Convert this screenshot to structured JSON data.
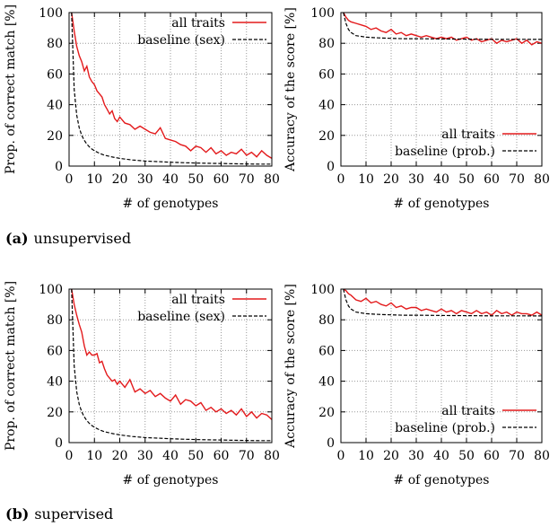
{
  "chart_data": [
    {
      "type": "line",
      "xlabel": "# of genotypes",
      "ylabel": "Prop. of correct match [%]",
      "xlim": [
        0,
        80
      ],
      "ylim": [
        0,
        100
      ],
      "xticks": [
        "0",
        "10",
        "20",
        "30",
        "40",
        "50",
        "60",
        "70",
        "80"
      ],
      "yticks": [
        "0",
        "20",
        "40",
        "60",
        "80",
        "100"
      ],
      "grid": true,
      "legend_position": "top-right",
      "series": [
        {
          "name": "all traits",
          "color": "#e31a1c",
          "style": "solid",
          "x": [
            1,
            2,
            3,
            4,
            5,
            6,
            7,
            8,
            9,
            10,
            11,
            12,
            13,
            14,
            15,
            16,
            17,
            18,
            19,
            20,
            22,
            24,
            26,
            28,
            30,
            32,
            34,
            36,
            38,
            40,
            42,
            44,
            46,
            48,
            50,
            52,
            54,
            56,
            58,
            60,
            62,
            64,
            66,
            68,
            70,
            72,
            74,
            76,
            78,
            80
          ],
          "y": [
            100,
            88,
            78,
            72,
            68,
            62,
            65,
            58,
            55,
            53,
            49,
            47,
            45,
            40,
            37,
            34,
            36,
            31,
            29,
            32,
            28,
            27,
            24,
            26,
            24,
            22,
            21,
            25,
            18,
            17,
            16,
            14,
            13,
            10,
            13,
            12,
            9,
            12,
            8,
            10,
            7,
            9,
            8,
            11,
            7,
            9,
            6,
            10,
            7,
            5
          ]
        },
        {
          "name": "baseline (sex)",
          "color": "#000000",
          "style": "dashed",
          "x": [
            1,
            2,
            3,
            4,
            5,
            6,
            7,
            8,
            9,
            10,
            12,
            14,
            16,
            18,
            20,
            25,
            30,
            35,
            40,
            45,
            50,
            55,
            60,
            65,
            70,
            75,
            80
          ],
          "y": [
            100,
            50,
            33.3,
            25,
            20,
            16.7,
            14.3,
            12.5,
            11.1,
            10,
            8.3,
            7.1,
            6.3,
            5.6,
            5,
            4,
            3.3,
            2.9,
            2.5,
            2.2,
            2,
            1.8,
            1.7,
            1.5,
            1.4,
            1.3,
            1.3
          ]
        }
      ]
    },
    {
      "type": "line",
      "xlabel": "# of genotypes",
      "ylabel": "Accuracy of the score [%]",
      "xlim": [
        0,
        80
      ],
      "ylim": [
        0,
        100
      ],
      "xticks": [
        "0",
        "10",
        "20",
        "30",
        "40",
        "50",
        "60",
        "70",
        "80"
      ],
      "yticks": [
        "0",
        "20",
        "40",
        "60",
        "80",
        "100"
      ],
      "grid": true,
      "legend_position": "bottom-right",
      "series": [
        {
          "name": "all traits",
          "color": "#e31a1c",
          "style": "solid",
          "x": [
            1,
            2,
            3,
            4,
            6,
            8,
            10,
            12,
            14,
            16,
            18,
            20,
            22,
            24,
            26,
            28,
            30,
            32,
            34,
            36,
            38,
            40,
            42,
            44,
            46,
            48,
            50,
            52,
            54,
            56,
            58,
            60,
            62,
            64,
            66,
            68,
            70,
            72,
            74,
            76,
            78,
            80
          ],
          "y": [
            100,
            97,
            95,
            94,
            93,
            92,
            91,
            89,
            90,
            88,
            87,
            89,
            86,
            87,
            85,
            86,
            85,
            84,
            85,
            84,
            83,
            84,
            83,
            84,
            82,
            83,
            84,
            82,
            83,
            81,
            82,
            83,
            80,
            82,
            81,
            82,
            83,
            80,
            82,
            79,
            81,
            80
          ]
        },
        {
          "name": "baseline (prob.)",
          "color": "#000000",
          "style": "dashed",
          "x": [
            1,
            2,
            3,
            4,
            5,
            6,
            8,
            10,
            15,
            20,
            25,
            30,
            40,
            50,
            60,
            70,
            80
          ],
          "y": [
            100,
            93,
            89,
            87,
            86,
            85,
            84.5,
            84,
            83.5,
            83.2,
            83,
            83,
            82.8,
            82.7,
            82.6,
            82.6,
            82.5
          ]
        }
      ]
    },
    {
      "type": "line",
      "xlabel": "# of genotypes",
      "ylabel": "Prop. of correct match [%]",
      "xlim": [
        0,
        80
      ],
      "ylim": [
        0,
        100
      ],
      "xticks": [
        "0",
        "10",
        "20",
        "30",
        "40",
        "50",
        "60",
        "70",
        "80"
      ],
      "yticks": [
        "0",
        "20",
        "40",
        "60",
        "80",
        "100"
      ],
      "grid": true,
      "legend_position": "top-right",
      "series": [
        {
          "name": "all traits",
          "color": "#e31a1c",
          "style": "solid",
          "x": [
            1,
            2,
            3,
            4,
            5,
            6,
            7,
            8,
            9,
            10,
            11,
            12,
            13,
            14,
            15,
            16,
            17,
            18,
            19,
            20,
            22,
            24,
            26,
            28,
            30,
            32,
            34,
            36,
            38,
            40,
            42,
            44,
            46,
            48,
            50,
            52,
            54,
            56,
            58,
            60,
            62,
            64,
            66,
            68,
            70,
            72,
            74,
            76,
            78,
            80
          ],
          "y": [
            100,
            90,
            83,
            77,
            72,
            63,
            57,
            59,
            57,
            57,
            58,
            52,
            53,
            48,
            44,
            42,
            40,
            41,
            38,
            40,
            36,
            41,
            33,
            35,
            32,
            34,
            30,
            32,
            29,
            27,
            31,
            25,
            28,
            27,
            24,
            26,
            21,
            23,
            20,
            22,
            19,
            21,
            18,
            22,
            17,
            20,
            16,
            19,
            18,
            15
          ]
        },
        {
          "name": "baseline (sex)",
          "color": "#000000",
          "style": "dashed",
          "x": [
            1,
            2,
            3,
            4,
            5,
            6,
            7,
            8,
            9,
            10,
            12,
            14,
            16,
            18,
            20,
            25,
            30,
            35,
            40,
            45,
            50,
            55,
            60,
            65,
            70,
            75,
            80
          ],
          "y": [
            100,
            50,
            33.3,
            25,
            20,
            16.7,
            14.3,
            12.5,
            11.1,
            10,
            8.3,
            7.1,
            6.3,
            5.6,
            5,
            4,
            3.3,
            2.9,
            2.5,
            2.2,
            2,
            1.8,
            1.7,
            1.5,
            1.4,
            1.3,
            1.3
          ]
        }
      ]
    },
    {
      "type": "line",
      "xlabel": "# of genotypes",
      "ylabel": "Accuracy of the score [%]",
      "xlim": [
        0,
        80
      ],
      "ylim": [
        0,
        100
      ],
      "xticks": [
        "0",
        "10",
        "20",
        "30",
        "40",
        "50",
        "60",
        "70",
        "80"
      ],
      "yticks": [
        "0",
        "20",
        "40",
        "60",
        "80",
        "100"
      ],
      "grid": true,
      "legend_position": "bottom-right",
      "series": [
        {
          "name": "all traits",
          "color": "#e31a1c",
          "style": "solid",
          "x": [
            1,
            2,
            3,
            4,
            6,
            8,
            10,
            12,
            14,
            16,
            18,
            20,
            22,
            24,
            26,
            28,
            30,
            32,
            34,
            36,
            38,
            40,
            42,
            44,
            46,
            48,
            50,
            52,
            54,
            56,
            58,
            60,
            62,
            64,
            66,
            68,
            70,
            72,
            74,
            76,
            78,
            80
          ],
          "y": [
            100,
            99,
            97,
            96,
            93,
            92,
            94,
            91,
            92,
            90,
            89,
            91,
            88,
            89,
            87,
            88,
            88,
            86,
            87,
            86,
            85,
            87,
            85,
            86,
            84,
            86,
            85,
            84,
            86,
            84,
            85,
            83,
            86,
            84,
            85,
            83,
            85,
            84,
            84,
            83,
            85,
            83
          ]
        },
        {
          "name": "baseline (prob.)",
          "color": "#000000",
          "style": "dashed",
          "x": [
            1,
            2,
            3,
            4,
            5,
            6,
            8,
            10,
            15,
            20,
            25,
            30,
            40,
            50,
            60,
            70,
            80
          ],
          "y": [
            100,
            93,
            89,
            87,
            86,
            85,
            84.5,
            84,
            83.5,
            83.2,
            83,
            83,
            82.8,
            82.7,
            82.6,
            82.6,
            82.5
          ]
        }
      ]
    }
  ],
  "captions": [
    {
      "label": "(a)",
      "text": "unsupervised"
    },
    {
      "label": "(b)",
      "text": "supervised"
    }
  ]
}
